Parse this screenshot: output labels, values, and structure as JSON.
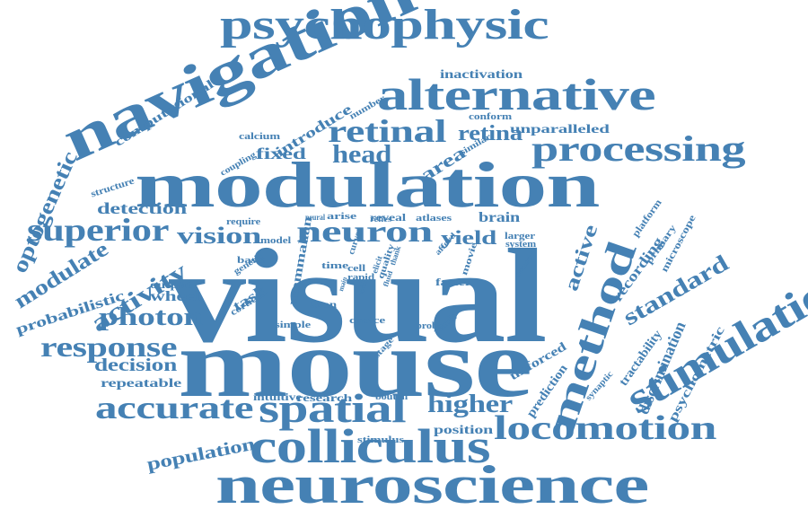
{
  "word_color": "#4581b4",
  "words": [
    {
      "text": "visual",
      "color": "#4581b4"
    },
    {
      "text": "mouse",
      "color": "#4581b4"
    },
    {
      "text": "modulation",
      "color": "#4581b4"
    },
    {
      "text": "neuroscience",
      "color": "#4581b4"
    },
    {
      "text": "navigation",
      "color": "#4581b4"
    },
    {
      "text": "psychophysic",
      "color": "#4581b4"
    },
    {
      "text": "alternative",
      "color": "#4581b4"
    },
    {
      "text": "colliculus",
      "color": "#4581b4"
    },
    {
      "text": "stimulation",
      "color": "#4581b4"
    },
    {
      "text": "method",
      "color": "#4581b4"
    },
    {
      "text": "spatial",
      "color": "#4581b4"
    },
    {
      "text": "processing",
      "color": "#4581b4"
    },
    {
      "text": "locomotion",
      "color": "#4581b4"
    },
    {
      "text": "neuron",
      "color": "#4581b4"
    },
    {
      "text": "superior",
      "color": "#4581b4"
    },
    {
      "text": "accurate",
      "color": "#4581b4"
    },
    {
      "text": "retinal",
      "color": "#4581b4"
    },
    {
      "text": "response",
      "color": "#4581b4"
    },
    {
      "text": "vision",
      "color": "#4581b4"
    },
    {
      "text": "photon",
      "color": "#4581b4"
    },
    {
      "text": "head",
      "color": "#4581b4"
    },
    {
      "text": "activity",
      "color": "#4581b4"
    },
    {
      "text": "modulate",
      "color": "#4581b4"
    },
    {
      "text": "standard",
      "color": "#4581b4"
    },
    {
      "text": "higher",
      "color": "#4581b4"
    },
    {
      "text": "retina",
      "color": "#4581b4"
    },
    {
      "text": "optogenetic",
      "color": "#4581b4"
    },
    {
      "text": "active",
      "color": "#4581b4"
    },
    {
      "text": "population",
      "color": "#4581b4"
    },
    {
      "text": "decision",
      "color": "#4581b4"
    },
    {
      "text": "discrimination",
      "color": "#4581b4"
    },
    {
      "text": "yield",
      "color": "#4581b4"
    },
    {
      "text": "area",
      "color": "#4581b4"
    },
    {
      "text": "recording",
      "color": "#4581b4"
    },
    {
      "text": "introduce",
      "color": "#4581b4"
    },
    {
      "text": "computational",
      "color": "#4581b4"
    },
    {
      "text": "fixed",
      "color": "#4581b4"
    },
    {
      "text": "detection",
      "color": "#4581b4"
    },
    {
      "text": "brain",
      "color": "#4581b4"
    },
    {
      "text": "probabilistic",
      "color": "#4581b4"
    },
    {
      "text": "unparalleled",
      "color": "#4581b4"
    },
    {
      "text": "psychometric",
      "color": "#4581b4"
    },
    {
      "text": "prediction",
      "color": "#4581b4"
    },
    {
      "text": "unforced",
      "color": "#4581b4"
    },
    {
      "text": "tractability",
      "color": "#4581b4"
    },
    {
      "text": "mammalian",
      "color": "#4581b4"
    },
    {
      "text": "wheel",
      "color": "#4581b4"
    },
    {
      "text": "task",
      "color": "#4581b4"
    },
    {
      "text": "repeatable",
      "color": "#4581b4"
    },
    {
      "text": "inactivation",
      "color": "#4581b4"
    },
    {
      "text": "research",
      "color": "#4581b4"
    },
    {
      "text": "position",
      "color": "#4581b4"
    },
    {
      "text": "output",
      "color": "#4581b4"
    },
    {
      "text": "primary",
      "color": "#4581b4"
    },
    {
      "text": "microscope",
      "color": "#4581b4"
    },
    {
      "text": "platform",
      "color": "#4581b4"
    },
    {
      "text": "conform",
      "color": "#4581b4"
    },
    {
      "text": "intuitive",
      "color": "#4581b4"
    },
    {
      "text": "faster",
      "color": "#4581b4"
    },
    {
      "text": "axon",
      "color": "#4581b4"
    },
    {
      "text": "stimulus",
      "color": "#4581b4"
    },
    {
      "text": "bouton",
      "color": "#4581b4"
    },
    {
      "text": "choice",
      "color": "#4581b4"
    },
    {
      "text": "structure",
      "color": "#4581b4"
    },
    {
      "text": "cortical",
      "color": "#4581b4"
    },
    {
      "text": "calcium",
      "color": "#4581b4"
    },
    {
      "text": "coupling",
      "color": "#4581b4"
    },
    {
      "text": "reveal",
      "color": "#4581b4"
    },
    {
      "text": "atlases",
      "color": "#4581b4"
    },
    {
      "text": "arise",
      "color": "#4581b4"
    },
    {
      "text": "relies",
      "color": "#4581b4"
    },
    {
      "text": "neural",
      "color": "#4581b4"
    },
    {
      "text": "require",
      "color": "#4581b4"
    },
    {
      "text": "model",
      "color": "#4581b4"
    },
    {
      "text": "basis",
      "color": "#4581b4"
    },
    {
      "text": "genetic",
      "color": "#4581b4"
    },
    {
      "text": "simple",
      "color": "#4581b4"
    },
    {
      "text": "time",
      "color": "#4581b4"
    },
    {
      "text": "cell",
      "color": "#4581b4"
    },
    {
      "text": "rapid",
      "color": "#4581b4"
    },
    {
      "text": "curve",
      "color": "#4581b4"
    },
    {
      "text": "main",
      "color": "#4581b4"
    },
    {
      "text": "trial",
      "color": "#4581b4"
    },
    {
      "text": "elicit",
      "color": "#4581b4"
    },
    {
      "text": "quality",
      "color": "#4581b4"
    },
    {
      "text": "fluid",
      "color": "#4581b4"
    },
    {
      "text": "thank",
      "color": "#4581b4"
    },
    {
      "text": "afford",
      "color": "#4581b4"
    },
    {
      "text": "result",
      "color": "#4581b4"
    },
    {
      "text": "probe",
      "color": "#4581b4"
    },
    {
      "text": "stage",
      "color": "#4581b4"
    },
    {
      "text": "movie",
      "color": "#4581b4"
    },
    {
      "text": "sensor",
      "color": "#4581b4"
    },
    {
      "text": "larger",
      "color": "#4581b4"
    },
    {
      "text": "system",
      "color": "#4581b4"
    },
    {
      "text": "similar",
      "color": "#4581b4"
    },
    {
      "text": "synaptic",
      "color": "#4581b4"
    },
    {
      "text": "number",
      "color": "#4581b4"
    }
  ]
}
